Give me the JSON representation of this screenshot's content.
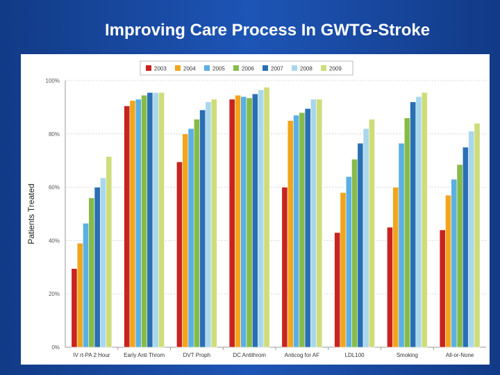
{
  "slide": {
    "title": "Improving Care Process In GWTG-Stroke"
  },
  "chart_data": {
    "type": "bar",
    "title": "",
    "ylabel": "Patients Treated",
    "xlabel": "",
    "ylim": [
      0,
      100
    ],
    "yticks": [
      0,
      20,
      40,
      60,
      80,
      100
    ],
    "ytick_labels": [
      "0%",
      "20%",
      "40%",
      "60%",
      "80%",
      "100%"
    ],
    "grid": true,
    "legend_position": "top",
    "categories": [
      "IV rt-PA 2 Hour",
      "Early Anti Throm",
      "DVT Proph",
      "DC Antithrom",
      "Anticog for AF",
      "LDL100",
      "Smoking",
      "All-or-None"
    ],
    "series": [
      {
        "name": "2003",
        "color": "#c8241f",
        "values": [
          29.5,
          90.5,
          69.5,
          93,
          60,
          43,
          45,
          44
        ]
      },
      {
        "name": "2004",
        "color": "#f2a51c",
        "values": [
          39,
          92.5,
          80,
          94.5,
          85,
          58,
          60,
          57
        ]
      },
      {
        "name": "2005",
        "color": "#5ab0e2",
        "values": [
          46.5,
          93,
          82,
          94,
          87,
          64,
          76.5,
          63
        ]
      },
      {
        "name": "2006",
        "color": "#86bb4a",
        "values": [
          56,
          94.5,
          85.5,
          93.5,
          88,
          70.5,
          86,
          68.5
        ]
      },
      {
        "name": "2007",
        "color": "#2a6fb4",
        "values": [
          60,
          95.5,
          89,
          95,
          89.5,
          76.5,
          92,
          75
        ]
      },
      {
        "name": "2008",
        "color": "#a9d7ec",
        "values": [
          63.5,
          95.5,
          92,
          96.5,
          93,
          82,
          94,
          81
        ]
      },
      {
        "name": "2009",
        "color": "#cfdc7a",
        "values": [
          71.5,
          95.5,
          93,
          97.5,
          93,
          85.5,
          95.5,
          84
        ]
      }
    ]
  }
}
